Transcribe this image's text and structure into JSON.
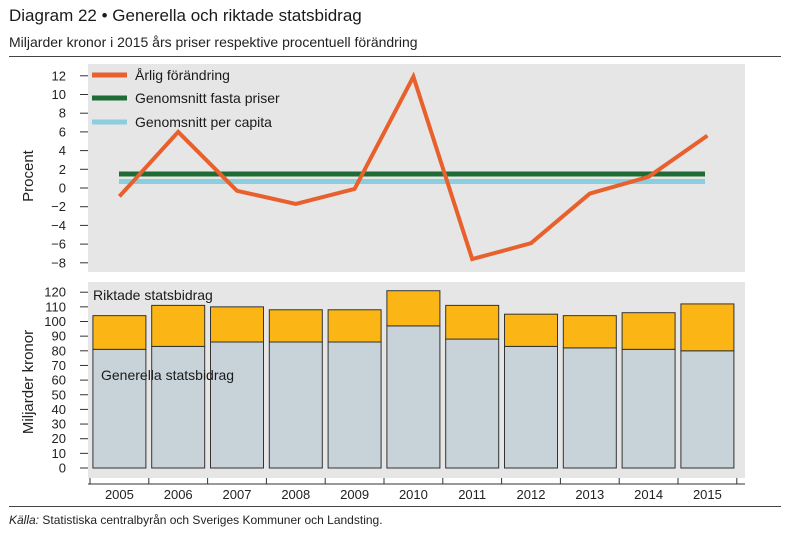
{
  "header": {
    "title": "Diagram 22 • Generella och riktade statsbidrag",
    "subtitle": "Miljarder kronor i 2015 års priser respektive procentuell förändring"
  },
  "footer": {
    "source_label": "Källa:",
    "source_text": " Statistiska centralbyrån och Sveriges Kommuner och Landsting."
  },
  "colors": {
    "panel_bg": "#e6e6e6",
    "annual_change": "#e8602c",
    "avg_fixed": "#1e6b35",
    "avg_capita": "#8ccde0",
    "riktade": "#fbb616",
    "generella": "#c8d3d9"
  },
  "chart_data": [
    {
      "type": "line",
      "ylabel": "Procent",
      "ylim": [
        -9,
        13
      ],
      "yticks": [
        12,
        10,
        8,
        6,
        4,
        2,
        0,
        -2,
        -4,
        -6,
        -8
      ],
      "ytick_labels": [
        "12",
        "10",
        "8",
        "6",
        "4",
        "2",
        "0",
        "−2",
        "−4",
        "−6",
        "−8"
      ],
      "x": [
        2005,
        2006,
        2007,
        2008,
        2009,
        2010,
        2011,
        2012,
        2013,
        2014,
        2015
      ],
      "legend_position": "top-left",
      "series": [
        {
          "name": "Årlig förändring",
          "values": [
            -0.9,
            6.0,
            -0.3,
            -1.7,
            -0.1,
            11.9,
            -7.6,
            -5.9,
            -0.6,
            1.2,
            5.6
          ]
        },
        {
          "name": "Genomsnitt fasta priser",
          "values": [
            1.5,
            1.5,
            1.5,
            1.5,
            1.5,
            1.5,
            1.5,
            1.5,
            1.5,
            1.5,
            1.5
          ]
        },
        {
          "name": "Genomsnitt per capita",
          "values": [
            0.7,
            0.7,
            0.7,
            0.7,
            0.7,
            0.7,
            0.7,
            0.7,
            0.7,
            0.7,
            0.7
          ]
        }
      ]
    },
    {
      "type": "bar",
      "stacked": true,
      "ylabel": "Miljarder kronor",
      "ylim": [
        0,
        125
      ],
      "yticks": [
        0,
        10,
        20,
        30,
        40,
        50,
        60,
        70,
        80,
        90,
        100,
        110,
        120
      ],
      "categories": [
        "2005",
        "2006",
        "2007",
        "2008",
        "2009",
        "2010",
        "2011",
        "2012",
        "2013",
        "2014",
        "2015"
      ],
      "series": [
        {
          "name": "Generella statsbidrag",
          "values": [
            81,
            83,
            86,
            86,
            86,
            97,
            88,
            83,
            82,
            81,
            80
          ]
        },
        {
          "name": "Riktade statsbidrag",
          "values": [
            23,
            28,
            24,
            22,
            22,
            24,
            23,
            22,
            22,
            25,
            32
          ]
        }
      ],
      "annotations": [
        "Riktade statsbidrag",
        "Generella statsbidrag"
      ]
    }
  ]
}
